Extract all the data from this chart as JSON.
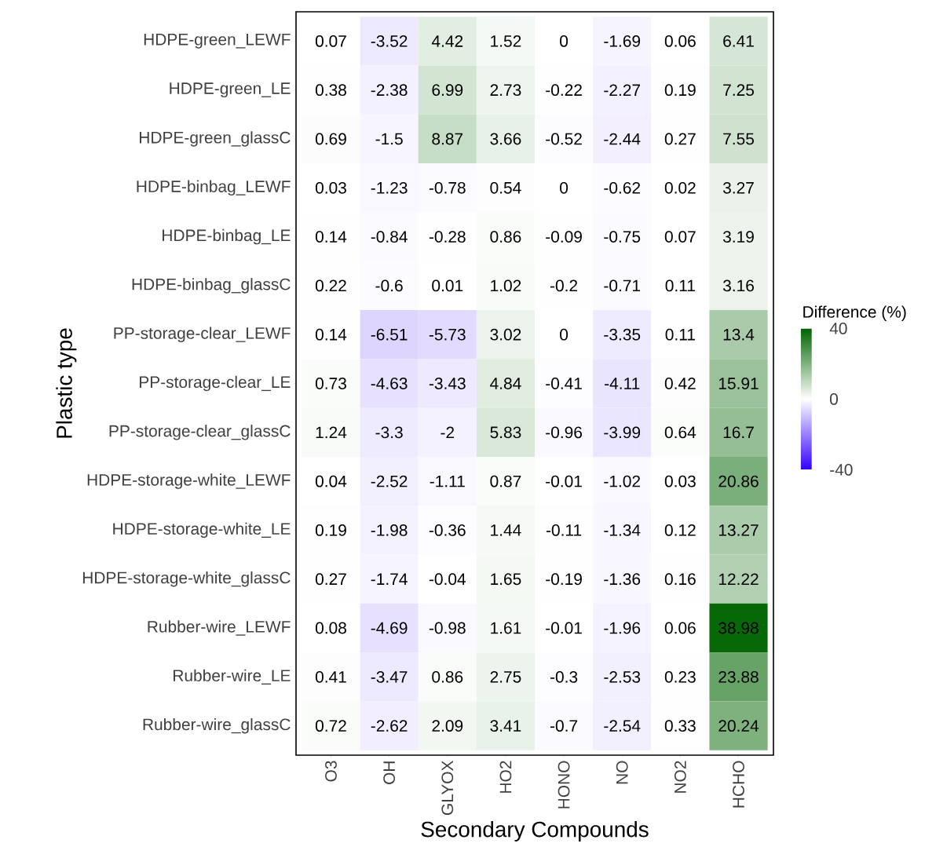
{
  "chart_data": {
    "type": "heatmap",
    "xlabel": "Secondary Compounds",
    "ylabel": "Plastic type",
    "clabel": "Difference (%)",
    "categories": [
      "O3",
      "OH",
      "GLYOX",
      "HO2",
      "HONO",
      "NO",
      "NO2",
      "HCHO"
    ],
    "y_categories": [
      "HDPE-green_LEWF",
      "HDPE-green_LE",
      "HDPE-green_glassC",
      "HDPE-binbag_LEWF",
      "HDPE-binbag_LE",
      "HDPE-binbag_glassC",
      "PP-storage-clear_LEWF",
      "PP-storage-clear_LE",
      "PP-storage-clear_glassC",
      "HDPE-storage-white_LEWF",
      "HDPE-storage-white_LE",
      "HDPE-storage-white_glassC",
      "Rubber-wire_LEWF",
      "Rubber-wire_LE",
      "Rubber-wire_glassC"
    ],
    "cells": [
      [
        0.07,
        -3.52,
        4.42,
        1.52,
        0,
        -1.69,
        0.06,
        6.41
      ],
      [
        0.38,
        -2.38,
        6.99,
        2.73,
        -0.22,
        -2.27,
        0.19,
        7.25
      ],
      [
        0.69,
        -1.5,
        8.87,
        3.66,
        -0.52,
        -2.44,
        0.27,
        7.55
      ],
      [
        0.03,
        -1.23,
        -0.78,
        0.54,
        0,
        -0.62,
        0.02,
        3.27
      ],
      [
        0.14,
        -0.84,
        -0.28,
        0.86,
        -0.09,
        -0.75,
        0.07,
        3.19
      ],
      [
        0.22,
        -0.6,
        0.01,
        1.02,
        -0.2,
        -0.71,
        0.11,
        3.16
      ],
      [
        0.14,
        -6.51,
        -5.73,
        3.02,
        0,
        -3.35,
        0.11,
        13.4
      ],
      [
        0.73,
        -4.63,
        -3.43,
        4.84,
        -0.41,
        -4.11,
        0.42,
        15.91
      ],
      [
        1.24,
        -3.3,
        -2,
        5.83,
        -0.96,
        -3.99,
        0.64,
        16.7
      ],
      [
        0.04,
        -2.52,
        -1.11,
        0.87,
        -0.01,
        -1.02,
        0.03,
        20.86
      ],
      [
        0.19,
        -1.98,
        -0.36,
        1.44,
        -0.11,
        -1.34,
        0.12,
        13.27
      ],
      [
        0.27,
        -1.74,
        -0.04,
        1.65,
        -0.19,
        -1.36,
        0.16,
        12.22
      ],
      [
        0.08,
        -4.69,
        -0.98,
        1.61,
        -0.01,
        -1.96,
        0.06,
        38.98
      ],
      [
        0.41,
        -3.47,
        0.86,
        2.75,
        -0.3,
        -2.53,
        0.23,
        23.88
      ],
      [
        0.72,
        -2.62,
        2.09,
        3.41,
        -0.7,
        -2.54,
        0.33,
        20.24
      ]
    ],
    "clim": [
      -40,
      40
    ],
    "cticks": [
      -40,
      0,
      40
    ],
    "data_labels": true
  }
}
